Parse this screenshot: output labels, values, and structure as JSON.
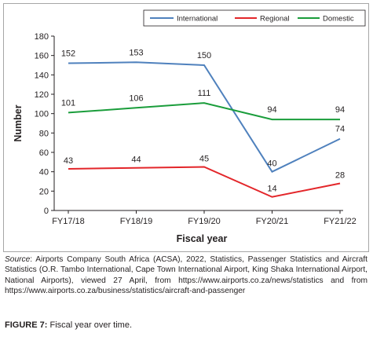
{
  "chart_data": {
    "type": "line",
    "categories": [
      "FY17/18",
      "FY18/19",
      "FY19/20",
      "FY20/21",
      "FY21/22"
    ],
    "series": [
      {
        "name": "International",
        "color": "#4f81bd",
        "values": [
          152,
          153,
          150,
          40,
          74
        ]
      },
      {
        "name": "Regional",
        "color": "#e3262a",
        "values": [
          43,
          44,
          45,
          14,
          28
        ]
      },
      {
        "name": "Domestic",
        "color": "#1a9d3b",
        "values": [
          101,
          106,
          111,
          94,
          94
        ]
      }
    ],
    "xlabel": "Fiscal year",
    "ylabel": "Number",
    "ylim": [
      0,
      180
    ],
    "yticks": [
      0,
      20,
      40,
      60,
      80,
      100,
      120,
      140,
      160,
      180
    ],
    "grid": false,
    "legend_position": "top-right"
  },
  "caption": {
    "source_label": "Source",
    "source_text": ": Airports Company South Africa (ACSA), 2022, Statistics, Passenger Statistics and Aircraft Statistics (O.R. Tambo International, Cape Town International Airport, King Shaka International Airport, National Airports), viewed 27 April, from https://www.airports.co.za/news/statistics and from https://www.airports.co.za/business/statistics/aircraft-and-passenger"
  },
  "figure": {
    "label": "FIGURE 7:",
    "title": "Fiscal year over time."
  }
}
